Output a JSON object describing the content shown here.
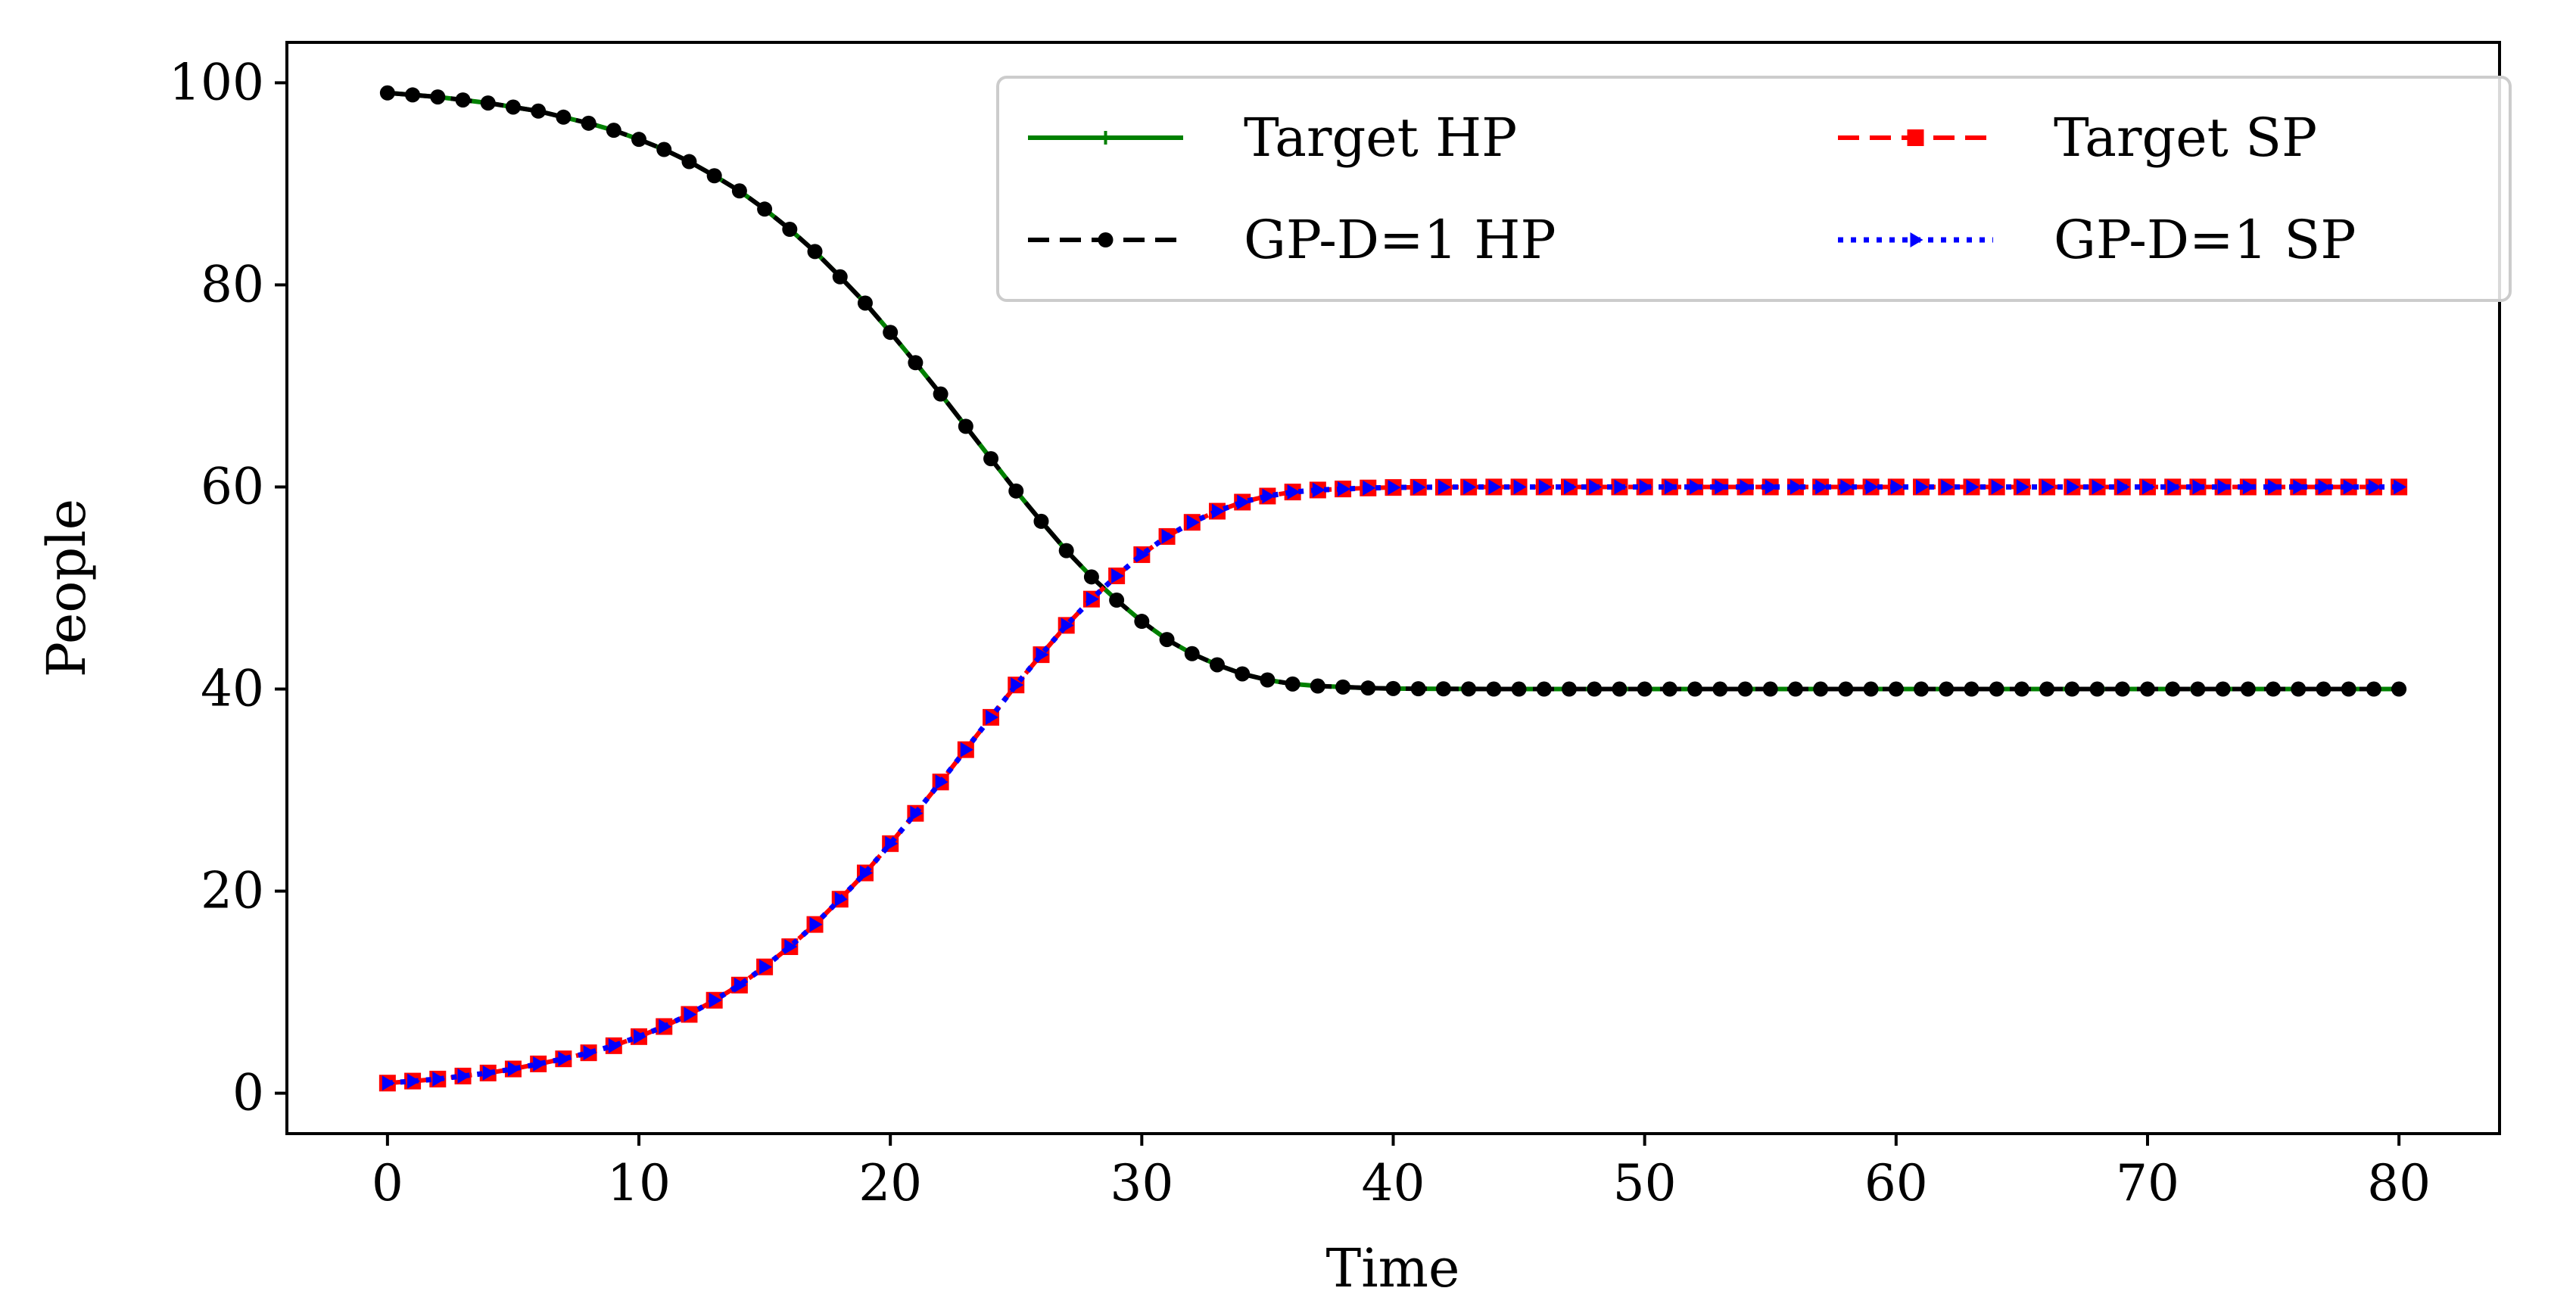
{
  "chart_data": {
    "type": "line",
    "title": "",
    "xlabel": "Time",
    "ylabel": "People",
    "xlim": [
      -4,
      84
    ],
    "ylim": [
      -4,
      104
    ],
    "xticks": [
      0,
      10,
      20,
      30,
      40,
      50,
      60,
      70,
      80
    ],
    "xtick_labels": [
      "0",
      "10",
      "20",
      "30",
      "40",
      "50",
      "60",
      "70",
      "80"
    ],
    "yticks": [
      0,
      20,
      40,
      60,
      80,
      100
    ],
    "ytick_labels": [
      "0",
      "20",
      "40",
      "60",
      "80",
      "100"
    ],
    "grid": false,
    "legend": {
      "position": "top-right",
      "columns": 2
    },
    "x": [
      0,
      1,
      2,
      3,
      4,
      5,
      6,
      7,
      8,
      9,
      10,
      11,
      12,
      13,
      14,
      15,
      16,
      17,
      18,
      19,
      20,
      21,
      22,
      23,
      24,
      25,
      26,
      27,
      28,
      29,
      30,
      31,
      32,
      33,
      34,
      35,
      36,
      37,
      38,
      39,
      40,
      41,
      42,
      43,
      44,
      45,
      46,
      47,
      48,
      49,
      50,
      51,
      52,
      53,
      54,
      55,
      56,
      57,
      58,
      59,
      60,
      61,
      62,
      63,
      64,
      65,
      66,
      67,
      68,
      69,
      70,
      71,
      72,
      73,
      74,
      75,
      76,
      77,
      78,
      79,
      80
    ],
    "series": [
      {
        "name": "Target HP",
        "color": "#008000",
        "line_style": "solid",
        "marker": "plus",
        "values": [
          99,
          98.8,
          98.6,
          98.3,
          98,
          97.6,
          97.2,
          96.6,
          96,
          95.3,
          94.4,
          93.4,
          92.2,
          90.8,
          89.3,
          87.5,
          85.5,
          83.3,
          80.8,
          78.2,
          75.3,
          72.3,
          69.2,
          66,
          62.8,
          59.6,
          56.6,
          53.7,
          51.1,
          48.8,
          46.7,
          44.9,
          43.5,
          42.4,
          41.5,
          40.9,
          40.5,
          40.3,
          40.2,
          40.1,
          40.05,
          40.03,
          40.02,
          40.01,
          40,
          40,
          40,
          40,
          40,
          40,
          40,
          40,
          40,
          40,
          40,
          40,
          40,
          40,
          40,
          40,
          40,
          40,
          40,
          40,
          40,
          40,
          40,
          40,
          40,
          40,
          40,
          40,
          40,
          40,
          40,
          40,
          40,
          40,
          40,
          40,
          40
        ]
      },
      {
        "name": "GP-D=1 HP",
        "color": "#000000",
        "line_style": "dashed",
        "marker": "circle",
        "values": [
          99,
          98.8,
          98.6,
          98.3,
          98,
          97.6,
          97.2,
          96.6,
          96,
          95.3,
          94.4,
          93.4,
          92.2,
          90.8,
          89.3,
          87.5,
          85.5,
          83.3,
          80.8,
          78.2,
          75.3,
          72.3,
          69.2,
          66,
          62.8,
          59.6,
          56.6,
          53.7,
          51.1,
          48.8,
          46.7,
          44.9,
          43.5,
          42.4,
          41.5,
          40.9,
          40.5,
          40.3,
          40.2,
          40.1,
          40.05,
          40.03,
          40.02,
          40.01,
          40,
          40,
          40,
          40,
          40,
          40,
          40,
          40,
          40,
          40,
          40,
          40,
          40,
          40,
          40,
          40,
          40,
          40,
          40,
          40,
          40,
          40,
          40,
          40,
          40,
          40,
          40,
          40,
          40,
          40,
          40,
          40,
          40,
          40,
          40,
          40,
          40
        ]
      },
      {
        "name": "Target SP",
        "color": "#ff0000",
        "line_style": "dashed",
        "marker": "square",
        "values": [
          1,
          1.2,
          1.4,
          1.7,
          2,
          2.4,
          2.9,
          3.4,
          4,
          4.7,
          5.6,
          6.6,
          7.8,
          9.2,
          10.7,
          12.5,
          14.5,
          16.7,
          19.2,
          21.8,
          24.7,
          27.7,
          30.8,
          34,
          37.2,
          40.4,
          43.4,
          46.3,
          48.9,
          51.2,
          53.3,
          55.1,
          56.5,
          57.6,
          58.5,
          59.1,
          59.5,
          59.7,
          59.8,
          59.9,
          59.95,
          59.97,
          59.98,
          59.99,
          60,
          60,
          60,
          60,
          60,
          60,
          60,
          60,
          60,
          60,
          60,
          60,
          60,
          60,
          60,
          60,
          60,
          60,
          60,
          60,
          60,
          60,
          60,
          60,
          60,
          60,
          60,
          60,
          60,
          60,
          60,
          60,
          60,
          60,
          60,
          60,
          60
        ]
      },
      {
        "name": "GP-D=1 SP",
        "color": "#0000ff",
        "line_style": "dotted",
        "marker": "triangle-right",
        "values": [
          1,
          1.2,
          1.4,
          1.7,
          2,
          2.4,
          2.9,
          3.4,
          4,
          4.7,
          5.6,
          6.6,
          7.8,
          9.2,
          10.7,
          12.5,
          14.5,
          16.7,
          19.2,
          21.8,
          24.7,
          27.7,
          30.8,
          34,
          37.2,
          40.4,
          43.4,
          46.3,
          48.9,
          51.2,
          53.3,
          55.1,
          56.5,
          57.6,
          58.5,
          59.1,
          59.5,
          59.7,
          59.8,
          59.9,
          59.95,
          59.97,
          59.98,
          59.99,
          60,
          60,
          60,
          60,
          60,
          60,
          60,
          60,
          60,
          60,
          60,
          60,
          60,
          60,
          60,
          60,
          60,
          60,
          60,
          60,
          60,
          60,
          60,
          60,
          60,
          60,
          60,
          60,
          60,
          60,
          60,
          60,
          60,
          60,
          60,
          60,
          60
        ]
      }
    ]
  }
}
